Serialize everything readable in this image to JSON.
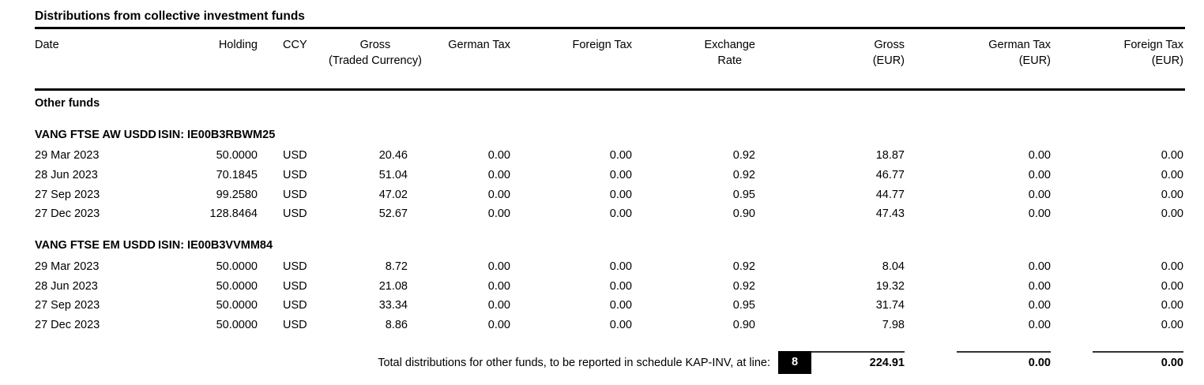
{
  "document": {
    "title": "Distributions from collective investment funds",
    "columns": [
      {
        "line1": "Date",
        "line2": ""
      },
      {
        "line1": "Holding",
        "line2": ""
      },
      {
        "line1": "CCY",
        "line2": ""
      },
      {
        "line1": "Gross",
        "line2": "(Traded Currency)"
      },
      {
        "line1": "German Tax",
        "line2": ""
      },
      {
        "line1": "Foreign Tax",
        "line2": ""
      },
      {
        "line1": "Exchange",
        "line2": "Rate"
      },
      {
        "line1": "Gross",
        "line2": "(EUR)"
      },
      {
        "line1": "German Tax",
        "line2": "(EUR)"
      },
      {
        "line1": "Foreign Tax",
        "line2": "(EUR)"
      }
    ],
    "section": "Other funds",
    "groups": [
      {
        "fund_name": "VANG FTSE AW USDD",
        "isin": "ISIN: IE00B3RBWM25",
        "rows": [
          {
            "date": "29 Mar 2023",
            "holding": "50.0000",
            "ccy": "USD",
            "gross": "20.46",
            "german_tax": "0.00",
            "foreign_tax": "0.00",
            "fx": "0.92",
            "gross_eur": "18.87",
            "german_tax_eur": "0.00",
            "foreign_tax_eur": "0.00"
          },
          {
            "date": "28 Jun 2023",
            "holding": "70.1845",
            "ccy": "USD",
            "gross": "51.04",
            "german_tax": "0.00",
            "foreign_tax": "0.00",
            "fx": "0.92",
            "gross_eur": "46.77",
            "german_tax_eur": "0.00",
            "foreign_tax_eur": "0.00"
          },
          {
            "date": "27 Sep 2023",
            "holding": "99.2580",
            "ccy": "USD",
            "gross": "47.02",
            "german_tax": "0.00",
            "foreign_tax": "0.00",
            "fx": "0.95",
            "gross_eur": "44.77",
            "german_tax_eur": "0.00",
            "foreign_tax_eur": "0.00"
          },
          {
            "date": "27 Dec 2023",
            "holding": "128.8464",
            "ccy": "USD",
            "gross": "52.67",
            "german_tax": "0.00",
            "foreign_tax": "0.00",
            "fx": "0.90",
            "gross_eur": "47.43",
            "german_tax_eur": "0.00",
            "foreign_tax_eur": "0.00"
          }
        ]
      },
      {
        "fund_name": "VANG FTSE EM USDD",
        "isin": "ISIN: IE00B3VVMM84",
        "rows": [
          {
            "date": "29 Mar 2023",
            "holding": "50.0000",
            "ccy": "USD",
            "gross": "8.72",
            "german_tax": "0.00",
            "foreign_tax": "0.00",
            "fx": "0.92",
            "gross_eur": "8.04",
            "german_tax_eur": "0.00",
            "foreign_tax_eur": "0.00"
          },
          {
            "date": "28 Jun 2023",
            "holding": "50.0000",
            "ccy": "USD",
            "gross": "21.08",
            "german_tax": "0.00",
            "foreign_tax": "0.00",
            "fx": "0.92",
            "gross_eur": "19.32",
            "german_tax_eur": "0.00",
            "foreign_tax_eur": "0.00"
          },
          {
            "date": "27 Sep 2023",
            "holding": "50.0000",
            "ccy": "USD",
            "gross": "33.34",
            "german_tax": "0.00",
            "foreign_tax": "0.00",
            "fx": "0.95",
            "gross_eur": "31.74",
            "german_tax_eur": "0.00",
            "foreign_tax_eur": "0.00"
          },
          {
            "date": "27 Dec 2023",
            "holding": "50.0000",
            "ccy": "USD",
            "gross": "8.86",
            "german_tax": "0.00",
            "foreign_tax": "0.00",
            "fx": "0.90",
            "gross_eur": "7.98",
            "german_tax_eur": "0.00",
            "foreign_tax_eur": "0.00"
          }
        ]
      }
    ],
    "total": {
      "label": "Total distributions for other funds, to be reported in schedule KAP-INV, at line:",
      "line_number": "8",
      "gross_eur": "224.91",
      "german_tax_eur": "0.00",
      "foreign_tax_eur": "0.00"
    },
    "colors": {
      "text": "#000000",
      "rule": "#000000",
      "line_number_bg": "#000000",
      "line_number_fg": "#ffffff"
    }
  }
}
